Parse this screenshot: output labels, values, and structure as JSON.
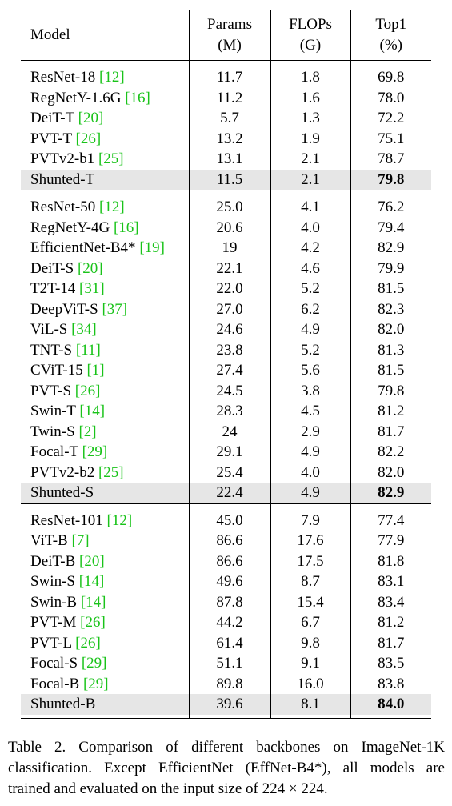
{
  "table": {
    "header": {
      "model": "Model",
      "params_line1": "Params",
      "params_line2": "(M)",
      "flops_line1": "FLOPs",
      "flops_line2": "(G)",
      "top1_line1": "Top1",
      "top1_line2": "(%)"
    },
    "groups": [
      {
        "rows": [
          {
            "model": "ResNet-18 ",
            "cite": "[12]",
            "params": "11.7",
            "flops": "1.8",
            "top1": "69.8"
          },
          {
            "model": "RegNetY-1.6G ",
            "cite": "[16]",
            "params": "11.2",
            "flops": "1.6",
            "top1": "78.0"
          },
          {
            "model": "DeiT-T ",
            "cite": "[20]",
            "params": "5.7",
            "flops": "1.3",
            "top1": "72.2"
          },
          {
            "model": "PVT-T ",
            "cite": "[26]",
            "params": "13.2",
            "flops": "1.9",
            "top1": "75.1"
          },
          {
            "model": "PVTv2-b1 ",
            "cite": "[25]",
            "params": "13.1",
            "flops": "2.1",
            "top1": "78.7"
          }
        ],
        "highlight": {
          "model": "Shunted-T",
          "params": "11.5",
          "flops": "2.1",
          "top1": "79.8"
        }
      },
      {
        "rows": [
          {
            "model": "ResNet-50 ",
            "cite": "[12]",
            "params": "25.0",
            "flops": "4.1",
            "top1": "76.2"
          },
          {
            "model": "RegNetY-4G ",
            "cite": "[16]",
            "params": "20.6",
            "flops": "4.0",
            "top1": "79.4"
          },
          {
            "model": "EfficientNet-B4* ",
            "cite": "[19]",
            "params": "19",
            "flops": "4.2",
            "top1": "82.9"
          },
          {
            "model": "DeiT-S ",
            "cite": "[20]",
            "params": "22.1",
            "flops": "4.6",
            "top1": "79.9"
          },
          {
            "model": "T2T-14 ",
            "cite": "[31]",
            "params": "22.0",
            "flops": "5.2",
            "top1": "81.5"
          },
          {
            "model": "DeepViT-S ",
            "cite": "[37]",
            "params": "27.0",
            "flops": "6.2",
            "top1": "82.3"
          },
          {
            "model": "ViL-S ",
            "cite": "[34]",
            "params": "24.6",
            "flops": "4.9",
            "top1": "82.0"
          },
          {
            "model": "TNT-S ",
            "cite": "[11]",
            "params": "23.8",
            "flops": "5.2",
            "top1": "81.3"
          },
          {
            "model": "CViT-15 ",
            "cite": "[1]",
            "params": "27.4",
            "flops": "5.6",
            "top1": "81.5"
          },
          {
            "model": "PVT-S ",
            "cite": "[26]",
            "params": "24.5",
            "flops": "3.8",
            "top1": "79.8"
          },
          {
            "model": "Swin-T ",
            "cite": "[14]",
            "params": "28.3",
            "flops": "4.5",
            "top1": "81.2"
          },
          {
            "model": "Twin-S ",
            "cite": "[2]",
            "params": "24",
            "flops": "2.9",
            "top1": "81.7"
          },
          {
            "model": "Focal-T ",
            "cite": "[29]",
            "params": "29.1",
            "flops": "4.9",
            "top1": "82.2"
          },
          {
            "model": "PVTv2-b2 ",
            "cite": "[25]",
            "params": "25.4",
            "flops": "4.0",
            "top1": "82.0"
          }
        ],
        "highlight": {
          "model": "Shunted-S",
          "params": "22.4",
          "flops": "4.9",
          "top1": "82.9"
        }
      },
      {
        "rows": [
          {
            "model": "ResNet-101 ",
            "cite": "[12]",
            "params": "45.0",
            "flops": "7.9",
            "top1": "77.4"
          },
          {
            "model": "ViT-B ",
            "cite": "[7]",
            "params": "86.6",
            "flops": "17.6",
            "top1": "77.9"
          },
          {
            "model": "DeiT-B ",
            "cite": "[20]",
            "params": "86.6",
            "flops": "17.5",
            "top1": "81.8"
          },
          {
            "model": "Swin-S ",
            "cite": "[14]",
            "params": "49.6",
            "flops": "8.7",
            "top1": "83.1"
          },
          {
            "model": "Swin-B ",
            "cite": "[14]",
            "params": "87.8",
            "flops": "15.4",
            "top1": "83.4"
          },
          {
            "model": "PVT-M ",
            "cite": "[26]",
            "params": "44.2",
            "flops": "6.7",
            "top1": "81.2"
          },
          {
            "model": "PVT-L ",
            "cite": "[26]",
            "params": "61.4",
            "flops": "9.8",
            "top1": "81.7"
          },
          {
            "model": "Focal-S ",
            "cite": "[29]",
            "params": "51.1",
            "flops": "9.1",
            "top1": "83.5"
          },
          {
            "model": "Focal-B ",
            "cite": "[29]",
            "params": "89.8",
            "flops": "16.0",
            "top1": "83.8"
          }
        ],
        "highlight": {
          "model": "Shunted-B",
          "params": "39.6",
          "flops": "8.1",
          "top1": "84.0"
        }
      }
    ]
  },
  "caption": {
    "line1": "Table 2.  Comparison of different backbones on ImageNet-1K",
    "line2": "classification.  Except EfficientNet (EffNet-B4*), all models are",
    "line3": "trained and evaluated on the input size of 224 × 224."
  },
  "colors": {
    "citation": "#19c319",
    "highlight_row": "#e6e6e6"
  }
}
